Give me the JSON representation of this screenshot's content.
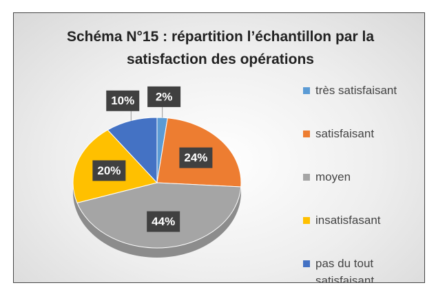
{
  "chart_data": {
    "type": "pie",
    "title": "Schéma N°15 : répartition l’échantillon par la satisfaction des opérations",
    "categories": [
      "très satisfaisant",
      "satisfaisant",
      "moyen",
      "insatisfasant",
      "pas du tout satisfaisant"
    ],
    "values": [
      2,
      24,
      44,
      20,
      10
    ],
    "value_labels": [
      "2%",
      "24%",
      "44%",
      "20%",
      "10%"
    ],
    "colors": [
      "#5b9bd5",
      "#ed7d31",
      "#a5a5a5",
      "#ffc000",
      "#4472c4"
    ],
    "legend": "right"
  }
}
